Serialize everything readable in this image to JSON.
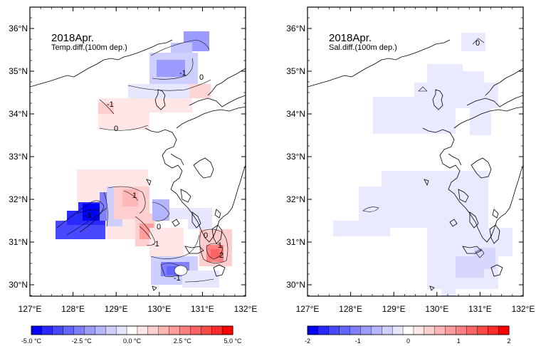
{
  "panels": [
    {
      "title": "2018Apr.",
      "subtitle": "Temp.diff.(100m dep.)",
      "contour_labels": [
        "-1",
        "0",
        "-1",
        "0",
        "1",
        "-3",
        "0",
        "-1",
        "-1",
        "1",
        "2",
        "0",
        "-1"
      ],
      "colorbar": {
        "unit": "°C",
        "tick_labels": [
          "-5.0 °C",
          "-2.5 °C",
          "0.0 °C",
          "2.5 °C",
          "5.0 °C"
        ],
        "range": [
          -5.0,
          5.0
        ],
        "colors": [
          "#0000ff",
          "#2a2aff",
          "#4848ff",
          "#6464ff",
          "#8080ff",
          "#9c9cff",
          "#b6b6ff",
          "#cfcfff",
          "#e6e6ff",
          "#ffffff",
          "#ffe6e6",
          "#ffcfcf",
          "#ffb6b6",
          "#ff9c9c",
          "#ff8080",
          "#ff6464",
          "#ff4848",
          "#ff2a2a",
          "#ff0000"
        ]
      }
    },
    {
      "title": "2018Apr.",
      "subtitle": "Sal.diff.(100m dep.)",
      "contour_labels": [
        "0"
      ],
      "colorbar": {
        "tick_labels": [
          "-2",
          "-1",
          "0",
          "1",
          "2"
        ],
        "range": [
          -2,
          2
        ],
        "colors": [
          "#0000ff",
          "#2a2aff",
          "#4848ff",
          "#6464ff",
          "#8080ff",
          "#9c9cff",
          "#b6b6ff",
          "#cfcfff",
          "#e6e6ff",
          "#ffffff",
          "#ffe6e6",
          "#ffcfcf",
          "#ffb6b6",
          "#ff9c9c",
          "#ff8080",
          "#ff6464",
          "#ff4848",
          "#ff2a2a",
          "#ff0000"
        ]
      }
    }
  ],
  "lon_labels": [
    "127°E",
    "128°E",
    "129°E",
    "130°E",
    "131°E",
    "132°E"
  ],
  "lat_labels": [
    "36°N",
    "35°N",
    "34°N",
    "33°N",
    "32°N",
    "31°N",
    "30°N"
  ]
}
